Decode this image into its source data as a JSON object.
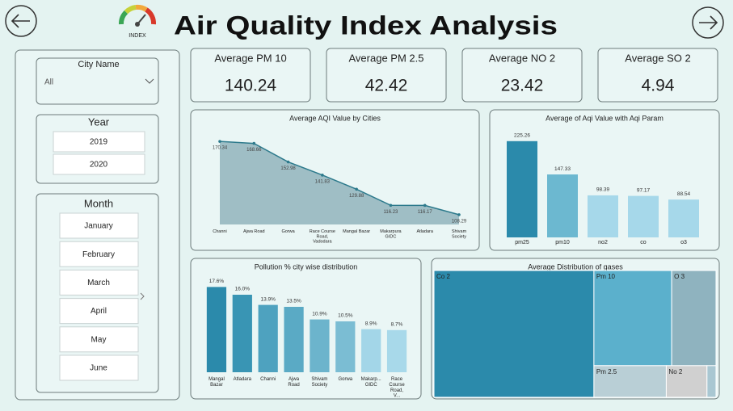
{
  "header": {
    "title": "Air Quality Index Analysis",
    "icon_label": "INDEX"
  },
  "filters": {
    "city": {
      "label": "City Name",
      "selected": "All"
    },
    "year": {
      "label": "Year",
      "options": [
        "2019",
        "2020"
      ]
    },
    "month": {
      "label": "Month",
      "options": [
        "January",
        "February",
        "March",
        "April",
        "May",
        "June"
      ]
    }
  },
  "cards": [
    {
      "label": "Average PM 10",
      "value": 140.24
    },
    {
      "label": "Average PM 2.5",
      "value": 42.42
    },
    {
      "label": "Average NO 2",
      "value": 23.42
    },
    {
      "label": "Average SO 2",
      "value": 4.94
    }
  ],
  "chart_data": [
    {
      "type": "area",
      "title": "Average AQI Value by Cities",
      "categories": [
        "Channi",
        "Ajwa Road",
        "Gorwa",
        "Race Course Road, Vadodara",
        "Mangal Bazar",
        "Makarpura GIDC",
        "Atladara",
        "Shivam Society"
      ],
      "values": [
        170.34,
        168.66,
        152.98,
        141.83,
        129.88,
        116.23,
        116.17,
        108.29
      ],
      "ylim": [
        100,
        180
      ],
      "color": "#2d7a8c",
      "fill": "#9fbec5"
    },
    {
      "type": "bar",
      "title": "Average of Aqi Value with Aqi Param",
      "categories": [
        "pm25",
        "pm10",
        "no2",
        "co",
        "o3"
      ],
      "values": [
        225.26,
        147.33,
        98.39,
        97.17,
        88.54
      ],
      "ylim": [
        0,
        240
      ],
      "colors": [
        "#2b8aab",
        "#6cb8d0",
        "#a6d8ea",
        "#a6d8ea",
        "#a6d8ea"
      ]
    },
    {
      "type": "bar",
      "title": "Pollution % city wise distribution",
      "categories": [
        "Mangal Bazar",
        "Atladara",
        "Channi",
        "Ajwa Road",
        "Shivam Society",
        "Gorwa",
        "Makarp... GIDC",
        "Race Course Road, V..."
      ],
      "values": [
        17.6,
        16.0,
        13.9,
        13.5,
        10.9,
        10.5,
        8.9,
        8.7
      ],
      "value_labels": [
        "17.6%",
        "16.0%",
        "13.9%",
        "13.5%",
        "10.9%",
        "10.5%",
        "8.9%",
        "8.7%"
      ],
      "ylim": [
        0,
        20
      ],
      "colors": [
        "#2b8aab",
        "#3995b4",
        "#4ea2bf",
        "#5aaac5",
        "#6cb4cc",
        "#7bbdd3",
        "#a3d6e8",
        "#a8d9ea"
      ]
    },
    {
      "type": "treemap",
      "title": "Average Distribution of gases",
      "categories": [
        "Co 2",
        "Pm 10",
        "O 3",
        "Pm 2.5",
        "No 2",
        null
      ],
      "values": [
        567,
        207,
        118,
        64,
        36,
        8
      ],
      "colors": [
        "#2b8aab",
        "#5bb0cc",
        "#8fb3bf",
        "#b9cfd6",
        "#d0d0d0",
        "#a9c7d2"
      ]
    }
  ]
}
